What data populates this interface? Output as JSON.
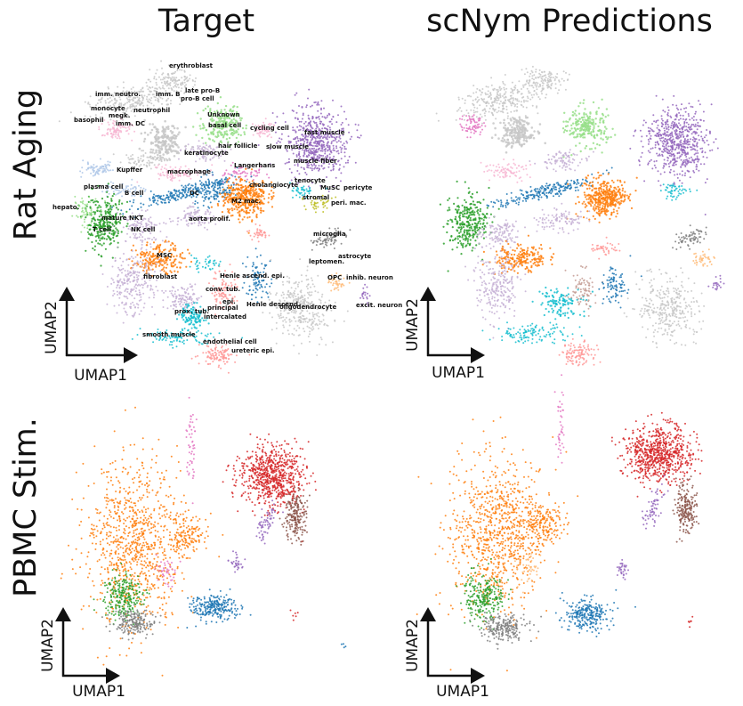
{
  "figure": {
    "column_titles": [
      "Target",
      "scNym Predictions"
    ],
    "row_titles": [
      "Rat Aging",
      "PBMC Stim."
    ],
    "axis_labels": {
      "x": "UMAP1",
      "y": "UMAP2"
    }
  },
  "chart_data": [
    {
      "type": "scatter",
      "panel": "Rat Aging - Target",
      "xlabel": "UMAP1",
      "ylabel": "UMAP2",
      "annotations": [
        "erythroblast",
        "late pro-B",
        "imm. neutro.",
        "imm. B",
        "pro-B cell",
        "monocyte",
        "neutrophil",
        "megk.",
        "basophil",
        "imm. DC",
        "Unknown",
        "basal cell",
        "cycling cell",
        "fast muscle",
        "hair follicle",
        "slow muscle",
        "keratinocyte",
        "muscle fiber",
        "Kupffer",
        "macrophage",
        "Langerhans",
        "plasma cell",
        "B cell",
        "DC",
        "cholangiocyte",
        "tenocyte",
        "MuSC",
        "pericyte",
        "stromal",
        "peri. mac.",
        "M2 mac.",
        "hepato.",
        "mature NKT",
        "aorta prolif.",
        "T cell",
        "NK cell",
        "microglia",
        "astrocyte",
        "MSC",
        "leptomen.",
        "fibroblast",
        "Henle ascend. epi.",
        "OPC",
        "inhib. neuron",
        "conv. tub.",
        "epi.",
        "prox. tub.",
        "principal",
        "Henle descend.",
        "oligodendrocyte",
        "excit. neuron",
        "intercalated",
        "smooth muscle",
        "endothelial cell",
        "ureteric epi."
      ]
    },
    {
      "type": "scatter",
      "panel": "Rat Aging - scNym Predictions",
      "xlabel": "UMAP1",
      "ylabel": "UMAP2"
    },
    {
      "type": "scatter",
      "panel": "PBMC Stim. - Target",
      "xlabel": "UMAP1",
      "ylabel": "UMAP2"
    },
    {
      "type": "scatter",
      "panel": "PBMC Stim. - scNym Predictions",
      "xlabel": "UMAP1",
      "ylabel": "UMAP2"
    }
  ],
  "palette": {
    "blue": "#1f77b4",
    "orange": "#ff7f0e",
    "green": "#2ca02c",
    "red": "#d62728",
    "purple": "#9467bd",
    "brown": "#8c564b",
    "pink": "#e377c2",
    "gray": "#7f7f7f",
    "olive": "#bcbd22",
    "cyan": "#17becf",
    "lightgray": "#c7c7c7",
    "lavender": "#c5b0d5",
    "lightblue": "#aec7e8",
    "lightorange": "#ffbb78",
    "lightgreen": "#98df8a",
    "lightred": "#ff9896",
    "lightpink": "#f7b6d2",
    "tan": "#c49c94",
    "darkgray": "#555555"
  }
}
